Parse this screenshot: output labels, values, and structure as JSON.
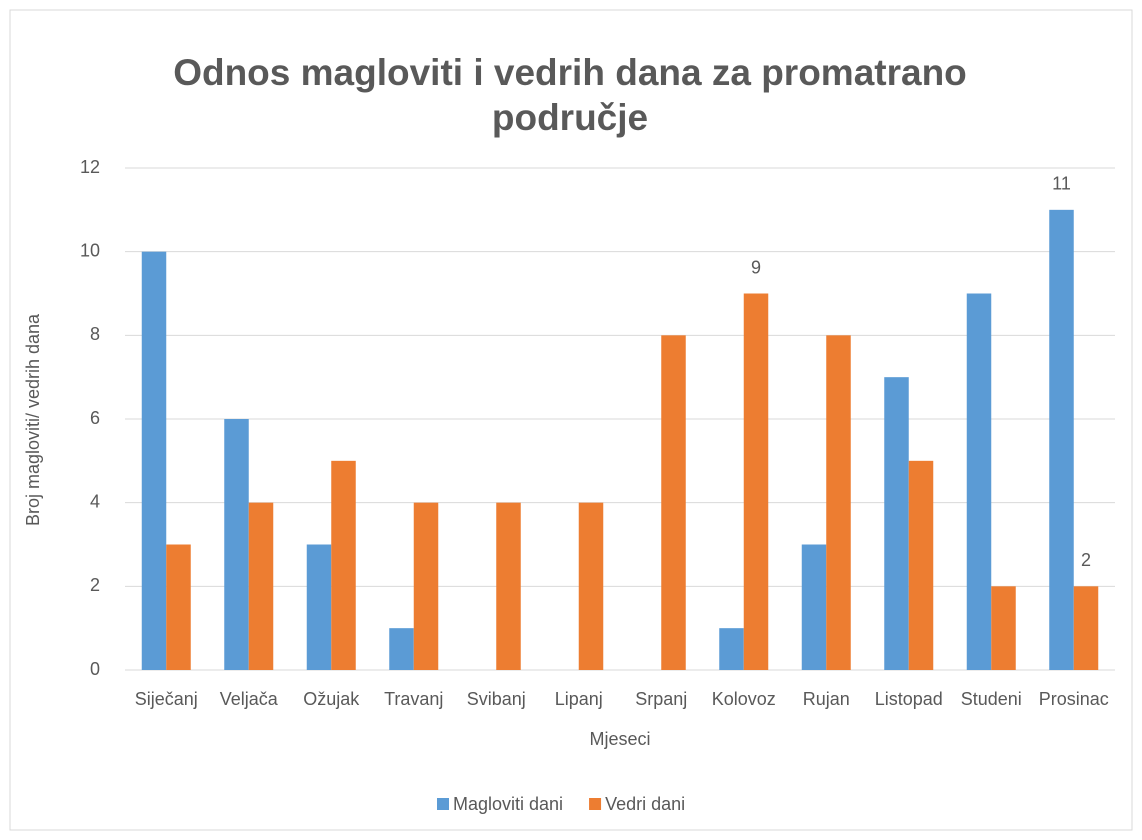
{
  "chart_data": {
    "type": "bar",
    "title": [
      "Odnos magloviti i vedrih dana za promatrano",
      "područje"
    ],
    "x_label": "Mjeseci",
    "y_label": "Broj magloviti/ vedrih dana",
    "categories": [
      "Siječanj",
      "Veljača",
      "Ožujak",
      "Travanj",
      "Svibanj",
      "Lipanj",
      "Srpanj",
      "Kolovoz",
      "Rujan",
      "Listopad",
      "Studeni",
      "Prosinac"
    ],
    "series": [
      {
        "name": "Magloviti dani",
        "color": "#5b9bd5",
        "values": [
          10,
          6,
          3,
          1,
          0,
          0,
          0,
          1,
          3,
          7,
          9,
          11
        ],
        "value_labels": [
          null,
          null,
          null,
          null,
          null,
          null,
          null,
          null,
          null,
          null,
          null,
          "11"
        ]
      },
      {
        "name": "Vedri dani",
        "color": "#ed7d31",
        "values": [
          3,
          4,
          5,
          4,
          4,
          4,
          8,
          9,
          8,
          5,
          2,
          2
        ],
        "value_labels": [
          null,
          null,
          null,
          null,
          null,
          null,
          null,
          "9",
          null,
          null,
          null,
          "2"
        ]
      }
    ],
    "ylim": [
      0,
      12
    ],
    "yticks": [
      0,
      2,
      4,
      6,
      8,
      10,
      12
    ],
    "grid": true,
    "legend": "bottom"
  }
}
